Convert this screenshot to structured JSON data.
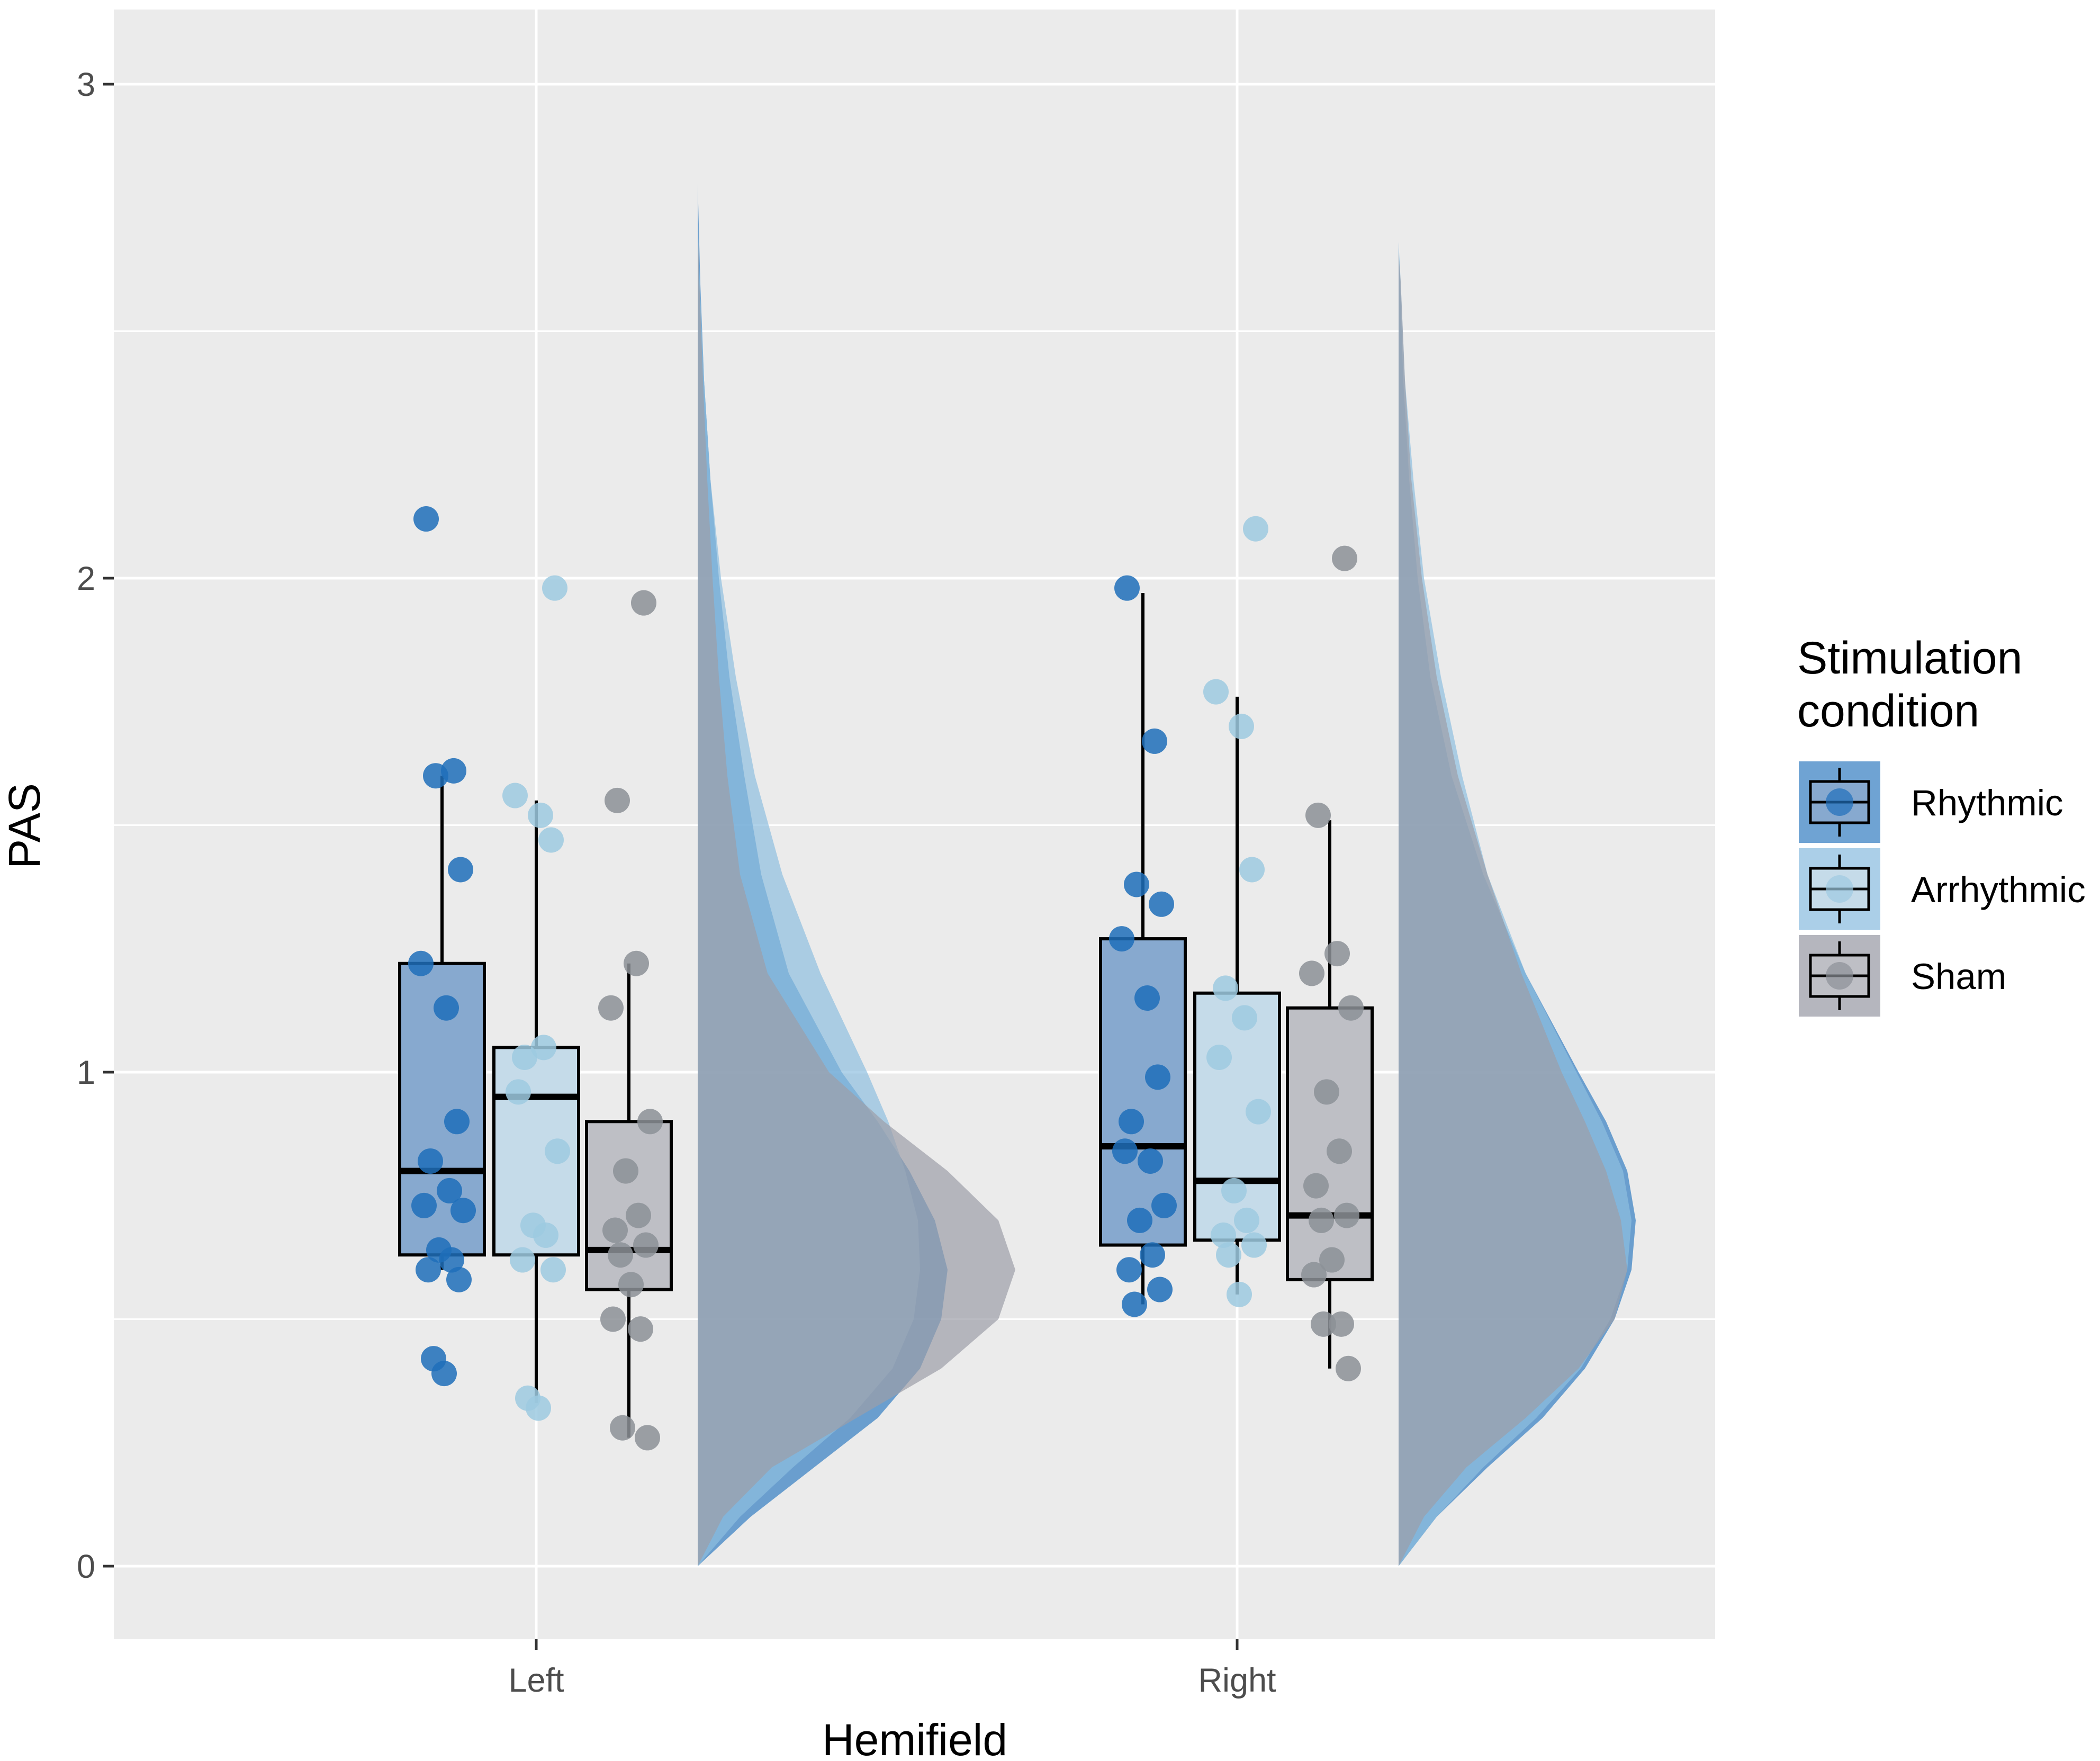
{
  "chart_data": {
    "type": "raincloud (box + jitter points + half-violin density)",
    "title": "",
    "xlabel": "Hemifield",
    "ylabel": "PAS",
    "ylim": [
      -0.15,
      3.15
    ],
    "y_ticks": [
      "0",
      "1",
      "2",
      "3"
    ],
    "categories": [
      "Left",
      "Right"
    ],
    "legend": {
      "title_line1": "Stimulation",
      "title_line2": "condition",
      "position": "right"
    },
    "series": [
      {
        "name": "Rhythmic",
        "color": "#1f6fba",
        "box_fill": "#87a9cf",
        "density_fill": "#3f84c4",
        "boxes": [
          {
            "category": "Left",
            "lower_whisker": 0.6,
            "q1": 0.63,
            "median": 0.8,
            "q3": 1.22,
            "upper_whisker": 1.6
          },
          {
            "category": "Right",
            "lower_whisker": 0.53,
            "q1": 0.65,
            "median": 0.85,
            "q3": 1.27,
            "upper_whisker": 1.97
          }
        ],
        "points": {
          "Left": [
            2.12,
            1.61,
            1.6,
            1.41,
            1.22,
            1.13,
            0.9,
            0.82,
            0.76,
            0.73,
            0.72,
            0.64,
            0.62,
            0.6,
            0.58,
            0.42,
            0.39
          ],
          "Right": [
            1.98,
            1.67,
            1.38,
            1.34,
            1.27,
            1.15,
            0.99,
            0.9,
            0.82,
            0.84,
            0.73,
            0.7,
            0.63,
            0.6,
            0.56,
            0.53
          ]
        },
        "density": {
          "Left": [
            [
              0.0,
              0.0
            ],
            [
              0.1,
              0.25
            ],
            [
              0.2,
              0.55
            ],
            [
              0.3,
              0.85
            ],
            [
              0.4,
              1.05
            ],
            [
              0.5,
              1.15
            ],
            [
              0.6,
              1.18
            ],
            [
              0.7,
              1.12
            ],
            [
              0.8,
              1.0
            ],
            [
              0.9,
              0.85
            ],
            [
              1.0,
              0.68
            ],
            [
              1.2,
              0.43
            ],
            [
              1.4,
              0.3
            ],
            [
              1.6,
              0.22
            ],
            [
              1.8,
              0.15
            ],
            [
              2.0,
              0.1
            ],
            [
              2.2,
              0.06
            ],
            [
              2.4,
              0.03
            ],
            [
              2.6,
              0.012
            ],
            [
              2.8,
              0.0
            ]
          ],
          "Right": [
            [
              0.0,
              0.0
            ],
            [
              0.1,
              0.18
            ],
            [
              0.2,
              0.42
            ],
            [
              0.3,
              0.68
            ],
            [
              0.4,
              0.88
            ],
            [
              0.5,
              1.02
            ],
            [
              0.6,
              1.1
            ],
            [
              0.7,
              1.12
            ],
            [
              0.8,
              1.08
            ],
            [
              0.9,
              0.98
            ],
            [
              1.0,
              0.85
            ],
            [
              1.2,
              0.6
            ],
            [
              1.4,
              0.4
            ],
            [
              1.6,
              0.25
            ],
            [
              1.8,
              0.15
            ],
            [
              2.0,
              0.09
            ],
            [
              2.2,
              0.05
            ],
            [
              2.4,
              0.022
            ],
            [
              2.6,
              0.007
            ],
            [
              2.68,
              0.0
            ]
          ]
        }
      },
      {
        "name": "Arrhythmic",
        "color": "#9ecae1",
        "box_fill": "#c5dbe9",
        "density_fill": "#8fbfe0",
        "boxes": [
          {
            "category": "Left",
            "lower_whisker": 0.33,
            "q1": 0.63,
            "median": 0.95,
            "q3": 1.05,
            "upper_whisker": 1.55
          },
          {
            "category": "Right",
            "lower_whisker": 0.55,
            "q1": 0.66,
            "median": 0.78,
            "q3": 1.16,
            "upper_whisker": 1.76
          }
        ],
        "points": {
          "Left": [
            1.98,
            1.56,
            1.52,
            1.47,
            1.03,
            1.05,
            0.96,
            0.84,
            0.69,
            0.67,
            0.62,
            0.6,
            0.34,
            0.32
          ],
          "Right": [
            2.1,
            1.77,
            1.7,
            1.41,
            1.17,
            1.11,
            1.03,
            0.92,
            0.76,
            0.7,
            0.67,
            0.65,
            0.63,
            0.55
          ]
        },
        "density": {
          "Left": [
            [
              0.0,
              0.0
            ],
            [
              0.1,
              0.2
            ],
            [
              0.2,
              0.45
            ],
            [
              0.3,
              0.72
            ],
            [
              0.4,
              0.92
            ],
            [
              0.5,
              1.02
            ],
            [
              0.6,
              1.05
            ],
            [
              0.7,
              1.04
            ],
            [
              0.8,
              0.98
            ],
            [
              0.9,
              0.9
            ],
            [
              1.0,
              0.8
            ],
            [
              1.2,
              0.58
            ],
            [
              1.4,
              0.4
            ],
            [
              1.6,
              0.27
            ],
            [
              1.8,
              0.18
            ],
            [
              2.0,
              0.11
            ],
            [
              2.2,
              0.06
            ],
            [
              2.4,
              0.03
            ],
            [
              2.6,
              0.01
            ],
            [
              2.72,
              0.0
            ]
          ],
          "Right": [
            [
              0.0,
              0.0
            ],
            [
              0.1,
              0.18
            ],
            [
              0.2,
              0.4
            ],
            [
              0.3,
              0.65
            ],
            [
              0.4,
              0.86
            ],
            [
              0.5,
              1.0
            ],
            [
              0.6,
              1.08
            ],
            [
              0.7,
              1.1
            ],
            [
              0.8,
              1.06
            ],
            [
              0.9,
              0.96
            ],
            [
              1.0,
              0.84
            ],
            [
              1.2,
              0.6
            ],
            [
              1.4,
              0.42
            ],
            [
              1.6,
              0.3
            ],
            [
              1.8,
              0.2
            ],
            [
              2.0,
              0.12
            ],
            [
              2.2,
              0.07
            ],
            [
              2.4,
              0.03
            ],
            [
              2.6,
              0.01
            ],
            [
              2.68,
              0.0
            ]
          ]
        }
      },
      {
        "name": "Sham",
        "color": "#8c9097",
        "box_fill": "#bebfc5",
        "density_fill": "#9c9ea8",
        "boxes": [
          {
            "category": "Left",
            "lower_whisker": 0.26,
            "q1": 0.56,
            "median": 0.64,
            "q3": 0.9,
            "upper_whisker": 1.22
          },
          {
            "category": "Right",
            "lower_whisker": 0.4,
            "q1": 0.58,
            "median": 0.71,
            "q3": 1.13,
            "upper_whisker": 1.51
          }
        ],
        "points": {
          "Left": [
            1.95,
            1.55,
            1.22,
            1.13,
            0.9,
            0.8,
            0.71,
            0.68,
            0.65,
            0.63,
            0.57,
            0.5,
            0.48,
            0.28,
            0.26
          ],
          "Right": [
            2.04,
            1.52,
            1.24,
            1.2,
            1.13,
            0.96,
            0.84,
            0.77,
            0.71,
            0.7,
            0.62,
            0.59,
            0.49,
            0.49,
            0.4
          ]
        },
        "density": {
          "Left": [
            [
              0.0,
              0.0
            ],
            [
              0.1,
              0.12
            ],
            [
              0.2,
              0.35
            ],
            [
              0.3,
              0.75
            ],
            [
              0.4,
              1.15
            ],
            [
              0.5,
              1.42
            ],
            [
              0.6,
              1.5
            ],
            [
              0.7,
              1.42
            ],
            [
              0.8,
              1.18
            ],
            [
              0.9,
              0.88
            ],
            [
              1.0,
              0.62
            ],
            [
              1.2,
              0.33
            ],
            [
              1.4,
              0.2
            ],
            [
              1.6,
              0.14
            ],
            [
              1.8,
              0.1
            ],
            [
              2.0,
              0.07
            ],
            [
              2.2,
              0.045
            ],
            [
              2.4,
              0.025
            ],
            [
              2.6,
              0.008
            ],
            [
              2.72,
              0.0
            ]
          ],
          "Right": [
            [
              0.0,
              0.0
            ],
            [
              0.1,
              0.12
            ],
            [
              0.2,
              0.32
            ],
            [
              0.3,
              0.6
            ],
            [
              0.4,
              0.85
            ],
            [
              0.5,
              1.02
            ],
            [
              0.6,
              1.08
            ],
            [
              0.7,
              1.05
            ],
            [
              0.8,
              0.98
            ],
            [
              0.9,
              0.88
            ],
            [
              1.0,
              0.77
            ],
            [
              1.2,
              0.58
            ],
            [
              1.4,
              0.42
            ],
            [
              1.6,
              0.28
            ],
            [
              1.8,
              0.18
            ],
            [
              2.0,
              0.11
            ],
            [
              2.2,
              0.06
            ],
            [
              2.4,
              0.03
            ],
            [
              2.6,
              0.01
            ],
            [
              2.66,
              0.0
            ]
          ]
        }
      }
    ]
  }
}
